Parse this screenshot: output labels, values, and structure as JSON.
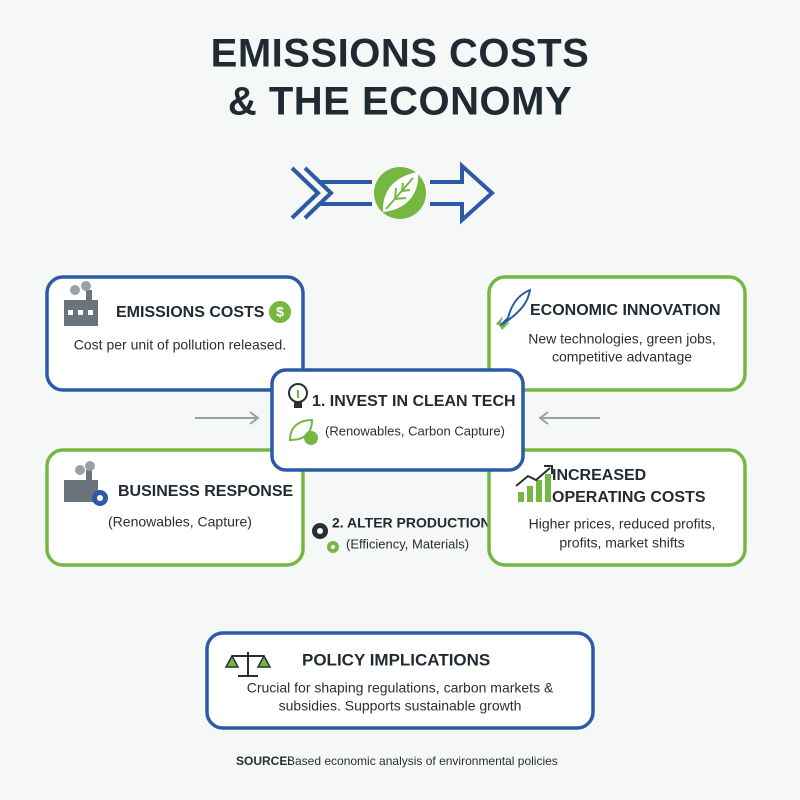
{
  "header": {
    "title_lines": [
      "EMISSIONS COSTS",
      "& THE ECONOMY"
    ]
  },
  "boxes": {
    "emissions_costs": {
      "heading": "EMISSIONS COSTS",
      "lines": [
        "Cost per unit of pollution released."
      ]
    },
    "economic_innovation": {
      "heading": "ECONOMIC INNOVATION",
      "lines": [
        "New technologies, green jobs,",
        "competitive advantage"
      ]
    },
    "invest_clean_tech": {
      "heading": "1. INVEST IN CLEAN TECH",
      "lines": [
        "(Renowables, Carbon Capture)"
      ]
    },
    "business_response": {
      "heading": "BUSINESS RESPONSE",
      "lines": [
        "(Renowables, Capture)"
      ]
    },
    "alter_production": {
      "heading": "2. ALTER PRODUCTION",
      "lines": [
        "(Efficiency, Materials)"
      ]
    },
    "operating_costs": {
      "heading_lines": [
        "INCREASED",
        "OPERATING COSTS"
      ],
      "lines": [
        "Higher prices, reduced profits,",
        "profits, market shifts"
      ]
    },
    "policy": {
      "heading": "POLICY IMPLICATIONS",
      "lines": [
        "Crucial for shaping regulations, carbon markets &",
        "subsidies. Supports sustainable growth"
      ]
    }
  },
  "footer": {
    "source_label": "SOURCE:",
    "source_text": "Based economic analysis of environmental policies"
  }
}
